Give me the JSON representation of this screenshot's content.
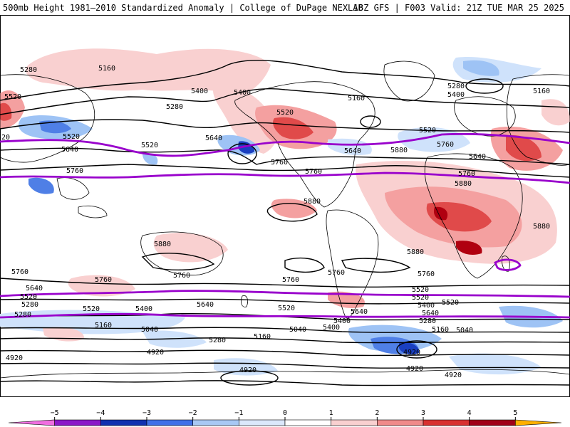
{
  "header": {
    "left_title": "500mb Height 1981–2010 Standardized Anomaly | College of DuPage NEXLAB",
    "right_title": "18Z GFS | F003 Valid: 21Z TUE MAR 25 2025"
  },
  "map": {
    "projection": "global equirectangular",
    "colors": {
      "land_outline": "#000000",
      "height_contour": "#000000",
      "highlight_contour": "#9900cc",
      "neg_weak": "#cfe2fb",
      "neg_mid": "#9ec3f5",
      "neg_strong": "#4f7fe6",
      "neg_core": "#1a3fc0",
      "pos_weak": "#f9d0d0",
      "pos_mid": "#f4a0a0",
      "pos_strong": "#e04a4a",
      "pos_core": "#b00010"
    },
    "contour_labels": [
      "5280",
      "5160",
      "5520",
      "5400",
      "5280",
      "5400",
      "5520",
      "5160",
      "5280",
      "5400",
      "5160",
      "5640",
      "5520",
      "5520",
      "5760",
      "5640",
      "5520",
      "5640",
      "5880",
      "5760",
      "5640",
      "5520",
      "5760",
      "5760",
      "5760",
      "5880",
      "5880",
      "5880",
      "5880",
      "5880",
      "5760",
      "5640",
      "5520",
      "5280",
      "5760",
      "5760",
      "5760",
      "5760",
      "5760",
      "5640",
      "5520",
      "5400",
      "5640",
      "5520",
      "5520",
      "5520",
      "5400",
      "5640",
      "5520",
      "5400",
      "5280",
      "5160",
      "5160",
      "5040",
      "5280",
      "5160",
      "5040",
      "5400",
      "5280",
      "5040",
      "4920",
      "4920",
      "4920",
      "4920",
      "4920",
      "4920"
    ]
  },
  "legend": {
    "ticks": [
      "−5",
      "−4",
      "−3",
      "−2",
      "−1",
      "0",
      "1",
      "2",
      "3",
      "4",
      "5"
    ],
    "bins": [
      {
        "color": "#f06ee0"
      },
      {
        "color": "#8a18c8"
      },
      {
        "color": "#1030b0"
      },
      {
        "color": "#4070e8"
      },
      {
        "color": "#a8c8f4"
      },
      {
        "color": "#dbe8fb"
      },
      {
        "color": "#ffffff"
      },
      {
        "color": "#f9d0d0"
      },
      {
        "color": "#f08a8a"
      },
      {
        "color": "#d83030"
      },
      {
        "color": "#a00018"
      },
      {
        "color": "#ffb000"
      }
    ]
  }
}
